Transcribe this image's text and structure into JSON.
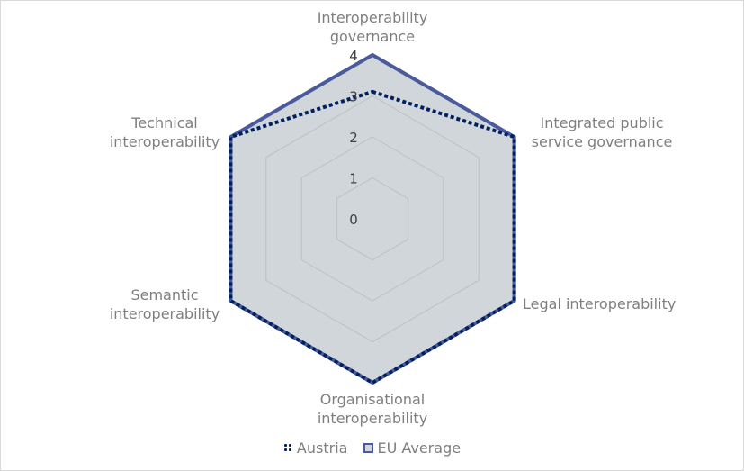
{
  "chart_data": {
    "type": "radar",
    "axes": [
      "Interoperability governance",
      "Integrated public service governance",
      "Legal interoperability",
      "Organisational interoperability",
      "Semantic interoperability",
      "Technical interoperability"
    ],
    "axis_label_lines": [
      [
        "Interoperability",
        "governance"
      ],
      [
        "Integrated public",
        "service governance"
      ],
      [
        "Legal interoperability"
      ],
      [
        "Organisational",
        "interoperability"
      ],
      [
        "Semantic",
        "interoperability"
      ],
      [
        "Technical",
        "interoperability"
      ]
    ],
    "scale": {
      "min": 0,
      "max": 4,
      "ticks": [
        0,
        1,
        2,
        3,
        4
      ]
    },
    "series": [
      {
        "name": "Austria",
        "values": [
          3.1,
          4,
          4,
          4,
          4,
          4
        ],
        "color": "#002060",
        "line_style": "dotted",
        "fill": "none"
      },
      {
        "name": "EU Average",
        "values": [
          4,
          4,
          4,
          4,
          4,
          4
        ],
        "color": "#4a5a9c",
        "line_style": "solid",
        "fill": "#d1d6db"
      }
    ],
    "gridlines": true,
    "legend_position": "bottom"
  }
}
